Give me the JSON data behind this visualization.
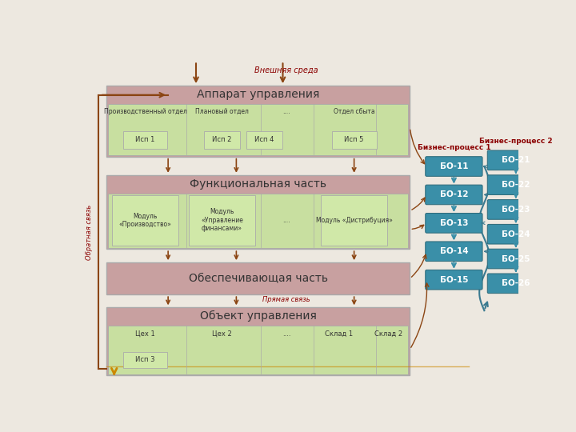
{
  "bg_color": "#ede8e0",
  "vnesh_label": "Внешняя среда",
  "obr_label": "Обратная связь",
  "pryam_label": "Прямая связь",
  "biz1_label": "Бизнес-процесс 1",
  "biz2_label": "Бизнес-процесс 2",
  "hdr_color": "#c8a0a0",
  "body_color": "#c8dfa0",
  "sub_box_color": "#d0e8a8",
  "teal_box": "#3a8fa8",
  "teal_arrow": "#3a8fa8",
  "brown": "#8B4513",
  "red_text": "#8B0000",
  "dark_text": "#333333",
  "bo1_items": [
    "БО-11",
    "БО-12",
    "БО-13",
    "БО-14",
    "БО-15"
  ],
  "bo2_items": [
    "БО-21",
    "БО-22",
    "БО-23",
    "БО-24",
    "БО-25",
    "БО-26"
  ],
  "dept_labels": [
    "Производственный отдел",
    "Плановый отдел",
    "....",
    "Отдел сбыта"
  ],
  "isp_top_labels": [
    "Исп 1",
    "Исп 2",
    "Исп 4"
  ],
  "isp5_label": "Исп 5",
  "mod_labels": [
    "Модуль\n«Производство»",
    "Модуль\n«Управление\nфинансами»",
    "....",
    "Модуль «Дистрибуция»"
  ],
  "obj_top_labels": [
    "Цех 1",
    "Цех 2",
    "....",
    "Склад 1",
    "Склад 2"
  ],
  "isp3_label": "Исп 3"
}
